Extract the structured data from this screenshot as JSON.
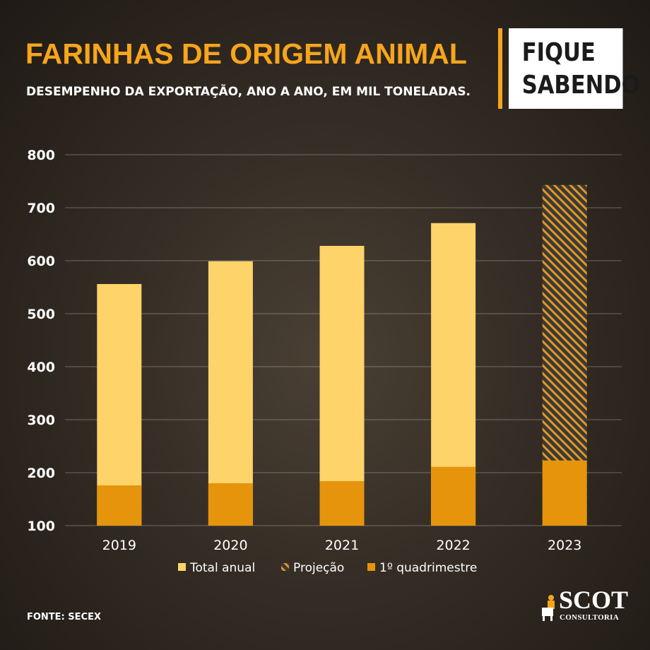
{
  "header": {
    "title": "FARINHAS DE ORIGEM ANIMAL",
    "subtitle": "DESEMPENHO DA EXPORTAÇÃO, ANO A ANO, EM MIL TONELADAS.",
    "badge_line1": "FIQUE",
    "badge_line2": "SABENDO"
  },
  "footer": {
    "source": "FONTE: SECEX",
    "logo_text": "SCOT",
    "logo_sub": "CONSULTORIA"
  },
  "colors": {
    "accent": "#f6a51d",
    "total": "#fdd36a",
    "quad": "#e5940c",
    "projection": "#e0962a"
  },
  "chart_data": {
    "type": "bar",
    "categories": [
      "2019",
      "2020",
      "2021",
      "2022",
      "2023"
    ],
    "ylim": [
      100,
      800
    ],
    "yticks": [
      100,
      200,
      300,
      400,
      500,
      600,
      700,
      800
    ],
    "grid": true,
    "legend_placement": "bottom",
    "series": [
      {
        "name": "Total anual",
        "values": [
          556,
          599,
          628,
          671,
          null
        ]
      },
      {
        "name": "Projeção",
        "values": [
          null,
          null,
          null,
          null,
          743
        ]
      },
      {
        "name": "1º quadrimestre",
        "values": [
          176,
          180,
          184,
          211,
          223
        ]
      }
    ]
  }
}
